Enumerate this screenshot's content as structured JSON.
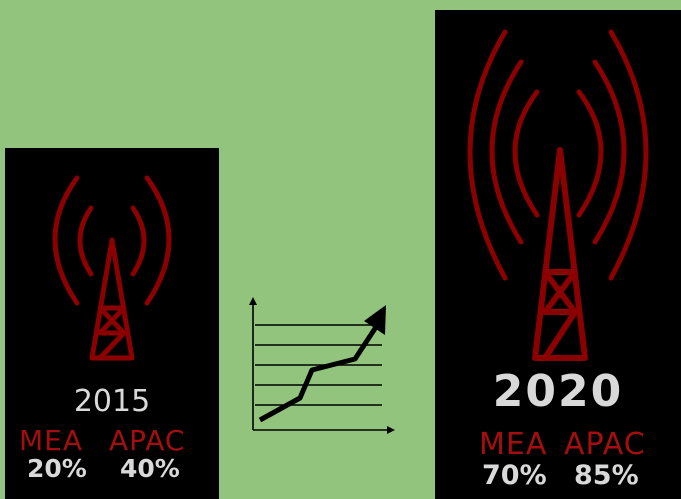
{
  "panels": {
    "left": {
      "year": "2015",
      "regions": [
        "MEA",
        "APAC"
      ],
      "percentages": [
        "20%",
        "40%"
      ]
    },
    "right": {
      "year": "2020",
      "regions": [
        "MEA",
        "APAC"
      ],
      "percentages": [
        "70%",
        "85%"
      ]
    }
  },
  "colors": {
    "background": "#93c47d",
    "panel": "#000000",
    "tower": "#8b0000",
    "region_text": "#a50e0e",
    "value_text": "#d9d9d9"
  },
  "icons": [
    "cell-tower-icon",
    "growth-chart-icon"
  ]
}
